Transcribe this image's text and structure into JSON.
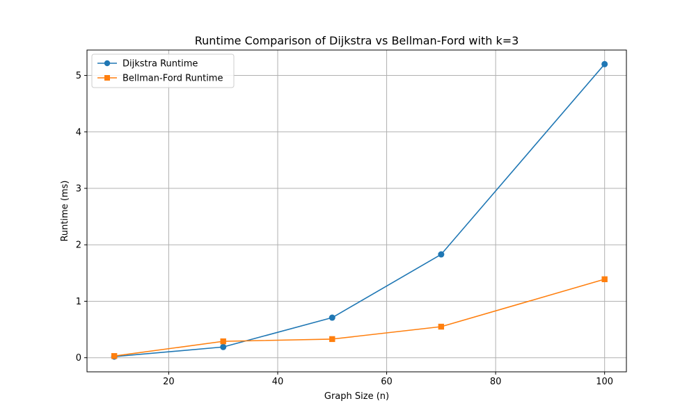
{
  "chart_data": {
    "type": "line",
    "title": "Runtime Comparison of Dijkstra vs Bellman-Ford with k=3",
    "xlabel": "Graph Size (n)",
    "ylabel": "Runtime (ms)",
    "xlim": [
      5,
      104
    ],
    "ylim": [
      -0.25,
      5.45
    ],
    "x_ticks": [
      20,
      40,
      60,
      80,
      100
    ],
    "y_ticks": [
      0,
      1,
      2,
      3,
      4,
      5
    ],
    "grid": true,
    "legend_position": "upper-left",
    "series": [
      {
        "name": "Dijkstra Runtime",
        "color": "#1f77b4",
        "marker": "circle",
        "x": [
          10,
          30,
          50,
          70,
          100
        ],
        "y": [
          0.02,
          0.19,
          0.71,
          1.83,
          5.2
        ]
      },
      {
        "name": "Bellman-Ford Runtime",
        "color": "#ff7f0e",
        "marker": "square",
        "x": [
          10,
          30,
          50,
          70,
          100
        ],
        "y": [
          0.03,
          0.29,
          0.33,
          0.55,
          1.39
        ]
      }
    ]
  }
}
